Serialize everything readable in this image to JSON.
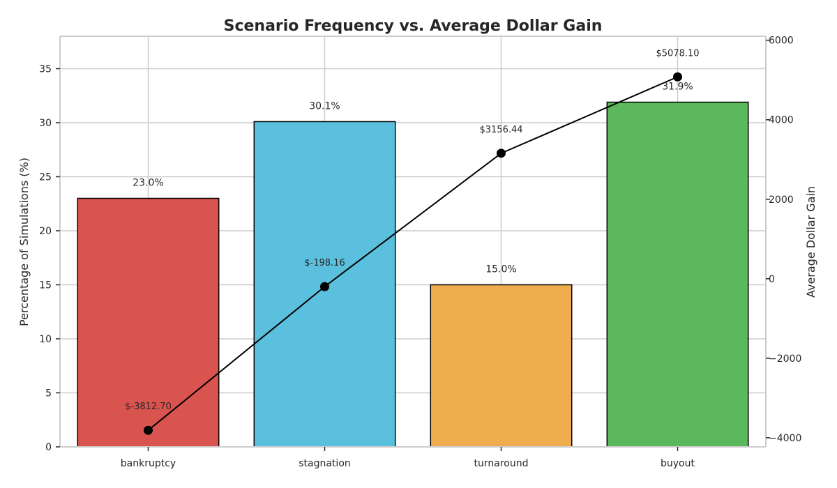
{
  "chart_data": {
    "type": "bar",
    "title": "Scenario Frequency vs. Average Dollar Gain",
    "categories": [
      "bankruptcy",
      "stagnation",
      "turnaround",
      "buyout"
    ],
    "ylabel": "Percentage of Simulations (%)",
    "y2label": "Average Dollar Gain",
    "ylim": [
      0,
      38
    ],
    "y2lim": [
      -4230,
      6100
    ],
    "yticks": [
      0,
      5,
      10,
      15,
      20,
      25,
      30,
      35
    ],
    "y2ticks": [
      -4000,
      -2000,
      0,
      2000,
      4000,
      6000
    ],
    "y2tick_labels": [
      "−4000",
      "−2000",
      "0",
      "2000",
      "4000",
      "6000"
    ],
    "grid": true,
    "series": [
      {
        "type": "bar",
        "axis": "left",
        "values": [
          23.0,
          30.1,
          15.0,
          31.9
        ],
        "labels": [
          "23.0%",
          "30.1%",
          "15.0%",
          "31.9%"
        ],
        "colors": [
          "#d9534f",
          "#5bc0de",
          "#f0ad4e",
          "#5cb85c"
        ]
      },
      {
        "type": "line",
        "axis": "right",
        "values": [
          -3812.7,
          -198.16,
          3156.44,
          5078.1
        ],
        "labels": [
          "$-3812.70",
          "$-198.16",
          "$3156.44",
          "$5078.10"
        ],
        "color": "#000000"
      }
    ]
  }
}
